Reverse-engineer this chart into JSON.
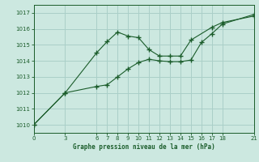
{
  "title": "Graphe pression niveau de la mer (hPa)",
  "bg_color": "#cce8e0",
  "grid_color": "#aacfc8",
  "line_color": "#1a5c2a",
  "marker_color": "#1a5c2a",
  "xlim": [
    0,
    21
  ],
  "ylim": [
    1009.5,
    1017.5
  ],
  "xticks": [
    0,
    3,
    6,
    7,
    8,
    9,
    10,
    11,
    12,
    13,
    14,
    15,
    16,
    17,
    18,
    21
  ],
  "yticks": [
    1010,
    1011,
    1012,
    1013,
    1014,
    1015,
    1016,
    1017
  ],
  "line1_x": [
    0,
    3,
    6,
    7,
    8,
    9,
    10,
    11,
    12,
    13,
    14,
    15,
    17,
    18,
    21
  ],
  "line1_y": [
    1010.0,
    1012.0,
    1014.5,
    1015.2,
    1015.8,
    1015.55,
    1015.45,
    1014.7,
    1014.3,
    1014.3,
    1014.3,
    1015.3,
    1016.1,
    1016.4,
    1016.8
  ],
  "line2_x": [
    0,
    3,
    6,
    7,
    8,
    9,
    10,
    11,
    12,
    13,
    14,
    15,
    16,
    17,
    18,
    21
  ],
  "line2_y": [
    1010.0,
    1012.0,
    1012.4,
    1012.5,
    1013.0,
    1013.5,
    1013.9,
    1014.1,
    1014.0,
    1013.95,
    1013.95,
    1014.05,
    1015.15,
    1015.7,
    1016.3,
    1016.9
  ]
}
